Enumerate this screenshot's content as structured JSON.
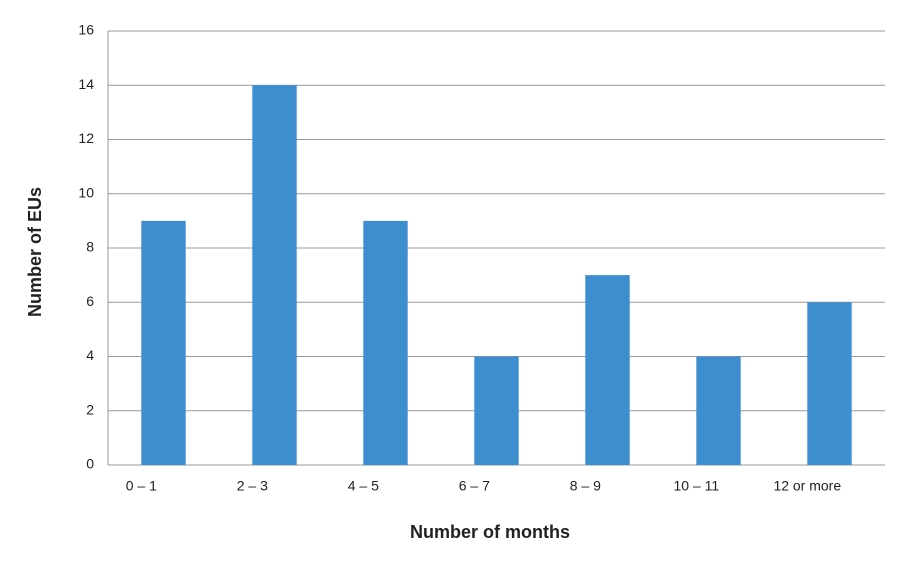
{
  "chart_data": {
    "type": "bar",
    "x_label": "Number of months",
    "y_label": "Number of EUs",
    "categories": [
      "0 – 1",
      "2 – 3",
      "4 – 5",
      "6 – 7",
      "8 – 9",
      "10 – 11",
      "12 or more"
    ],
    "values": [
      9,
      14,
      9,
      4,
      7,
      4,
      6
    ],
    "color": "#3d8ecf",
    "ylim": [
      0,
      16
    ],
    "yticks": [
      0,
      2,
      4,
      6,
      8,
      10,
      12,
      14,
      16
    ],
    "grid": true
  }
}
